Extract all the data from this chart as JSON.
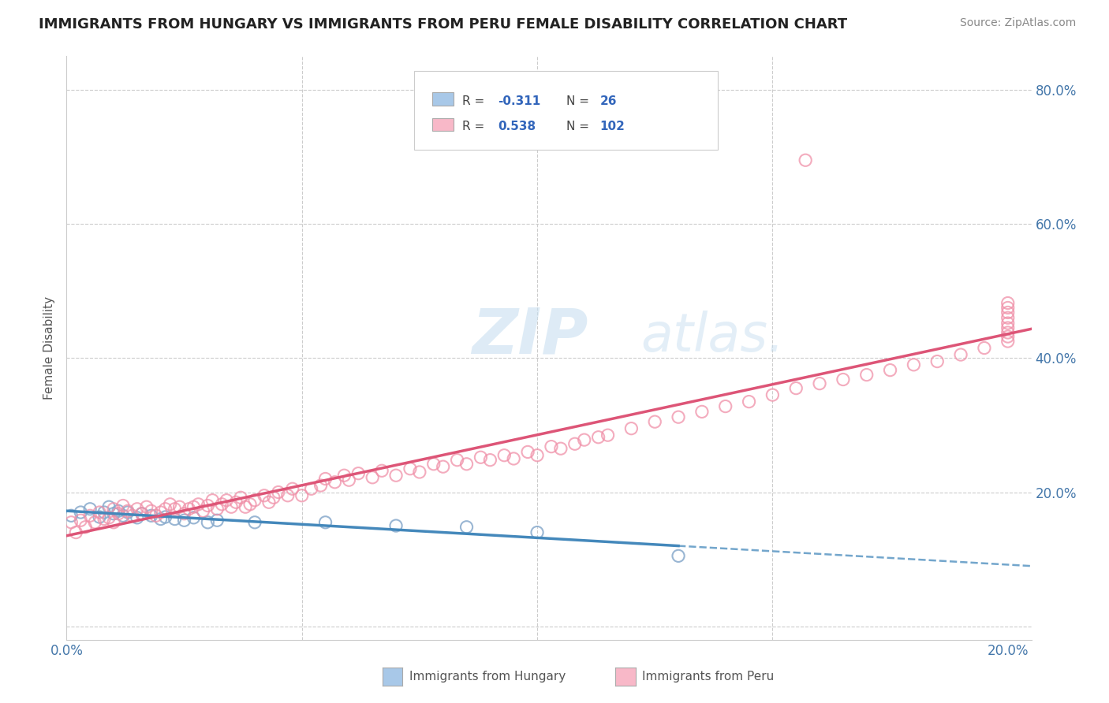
{
  "title": "IMMIGRANTS FROM HUNGARY VS IMMIGRANTS FROM PERU FEMALE DISABILITY CORRELATION CHART",
  "source": "Source: ZipAtlas.com",
  "ylabel": "Female Disability",
  "xlim": [
    0.0,
    0.205
  ],
  "ylim": [
    -0.02,
    0.85
  ],
  "xticks": [
    0.0,
    0.05,
    0.1,
    0.15,
    0.2
  ],
  "xtick_labels": [
    "0.0%",
    "",
    "",
    "",
    "20.0%"
  ],
  "yticks": [
    0.0,
    0.2,
    0.4,
    0.6,
    0.8
  ],
  "ytick_labels": [
    "",
    "20.0%",
    "40.0%",
    "60.0%",
    "80.0%"
  ],
  "hungary_R": -0.311,
  "hungary_N": 26,
  "peru_R": 0.538,
  "peru_N": 102,
  "hungary_color": "#a8c8e8",
  "hungary_dot_color": "#88aacc",
  "peru_color": "#f8b8c8",
  "peru_dot_color": "#f090a8",
  "hungary_line_color": "#4488bb",
  "peru_line_color": "#dd5577",
  "background_color": "#ffffff",
  "grid_color": "#cccccc",
  "legend_hungary": "Immigrants from Hungary",
  "legend_peru": "Immigrants from Peru",
  "hungary_x": [
    0.001,
    0.003,
    0.005,
    0.007,
    0.008,
    0.009,
    0.01,
    0.011,
    0.012,
    0.013,
    0.015,
    0.016,
    0.018,
    0.02,
    0.021,
    0.023,
    0.025,
    0.027,
    0.03,
    0.032,
    0.04,
    0.055,
    0.07,
    0.085,
    0.1,
    0.13
  ],
  "hungary_y": [
    0.165,
    0.17,
    0.175,
    0.163,
    0.17,
    0.178,
    0.168,
    0.172,
    0.165,
    0.17,
    0.162,
    0.168,
    0.165,
    0.16,
    0.163,
    0.16,
    0.158,
    0.162,
    0.155,
    0.158,
    0.155,
    0.155,
    0.15,
    0.148,
    0.14,
    0.105
  ],
  "peru_x": [
    0.001,
    0.002,
    0.003,
    0.004,
    0.005,
    0.006,
    0.007,
    0.008,
    0.009,
    0.01,
    0.01,
    0.011,
    0.012,
    0.013,
    0.014,
    0.015,
    0.016,
    0.017,
    0.018,
    0.019,
    0.02,
    0.021,
    0.022,
    0.023,
    0.024,
    0.025,
    0.026,
    0.027,
    0.028,
    0.029,
    0.03,
    0.031,
    0.032,
    0.033,
    0.034,
    0.035,
    0.036,
    0.037,
    0.038,
    0.039,
    0.04,
    0.042,
    0.043,
    0.044,
    0.045,
    0.047,
    0.048,
    0.05,
    0.052,
    0.054,
    0.055,
    0.057,
    0.059,
    0.06,
    0.062,
    0.065,
    0.067,
    0.07,
    0.073,
    0.075,
    0.078,
    0.08,
    0.083,
    0.085,
    0.088,
    0.09,
    0.093,
    0.095,
    0.098,
    0.1,
    0.103,
    0.105,
    0.108,
    0.11,
    0.113,
    0.115,
    0.12,
    0.125,
    0.13,
    0.135,
    0.14,
    0.145,
    0.15,
    0.155,
    0.16,
    0.165,
    0.17,
    0.175,
    0.18,
    0.185,
    0.19,
    0.195,
    0.2,
    0.2,
    0.2,
    0.2,
    0.2,
    0.2,
    0.2,
    0.2,
    0.2,
    0.157
  ],
  "peru_y": [
    0.155,
    0.14,
    0.158,
    0.148,
    0.165,
    0.155,
    0.17,
    0.16,
    0.162,
    0.155,
    0.175,
    0.168,
    0.18,
    0.172,
    0.165,
    0.175,
    0.168,
    0.178,
    0.172,
    0.165,
    0.17,
    0.175,
    0.182,
    0.175,
    0.178,
    0.168,
    0.175,
    0.178,
    0.182,
    0.172,
    0.18,
    0.188,
    0.175,
    0.182,
    0.188,
    0.178,
    0.185,
    0.192,
    0.178,
    0.182,
    0.188,
    0.195,
    0.185,
    0.192,
    0.2,
    0.195,
    0.205,
    0.195,
    0.205,
    0.21,
    0.22,
    0.215,
    0.225,
    0.218,
    0.228,
    0.222,
    0.232,
    0.225,
    0.235,
    0.23,
    0.242,
    0.238,
    0.248,
    0.242,
    0.252,
    0.248,
    0.255,
    0.25,
    0.26,
    0.255,
    0.268,
    0.265,
    0.272,
    0.278,
    0.282,
    0.285,
    0.295,
    0.305,
    0.312,
    0.32,
    0.328,
    0.335,
    0.345,
    0.355,
    0.362,
    0.368,
    0.375,
    0.382,
    0.39,
    0.395,
    0.405,
    0.415,
    0.425,
    0.432,
    0.438,
    0.445,
    0.452,
    0.46,
    0.468,
    0.475,
    0.482,
    0.695
  ]
}
